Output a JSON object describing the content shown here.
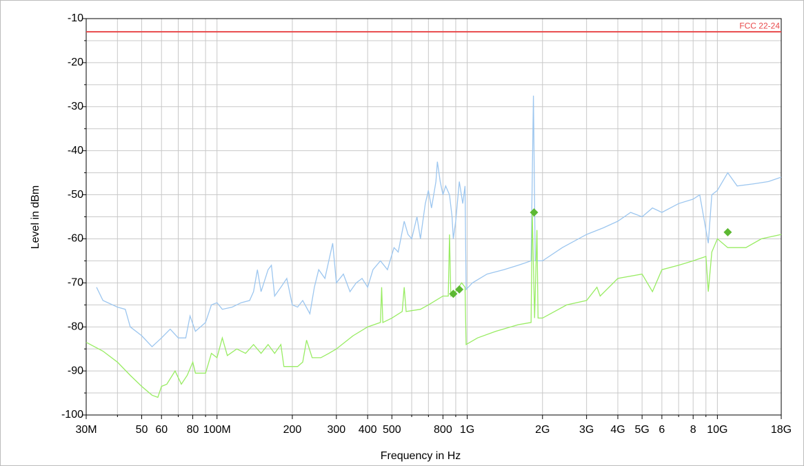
{
  "chart_data": {
    "type": "line",
    "xlabel": "Frequency in Hz",
    "ylabel": "Level in dBm",
    "xscale": "log",
    "grid": true,
    "xlim": [
      30000000,
      18000000000
    ],
    "ylim": [
      -100,
      -10
    ],
    "yticks": [
      -100,
      -90,
      -80,
      -70,
      -60,
      -50,
      -40,
      -30,
      -20,
      -10
    ],
    "yminorticks": [
      -95,
      -85,
      -75,
      -65,
      -55,
      -45,
      -35,
      -25,
      -15
    ],
    "xticks": [
      {
        "value": 30000000,
        "label": "30M"
      },
      {
        "value": 50000000,
        "label": "50"
      },
      {
        "value": 60000000,
        "label": "60"
      },
      {
        "value": 80000000,
        "label": "80"
      },
      {
        "value": 100000000,
        "label": "100M"
      },
      {
        "value": 200000000,
        "label": "200"
      },
      {
        "value": 300000000,
        "label": "300"
      },
      {
        "value": 400000000,
        "label": "400"
      },
      {
        "value": 500000000,
        "label": "500"
      },
      {
        "value": 800000000,
        "label": "800"
      },
      {
        "value": 1000000000,
        "label": "1G"
      },
      {
        "value": 2000000000,
        "label": "2G"
      },
      {
        "value": 3000000000,
        "label": "3G"
      },
      {
        "value": 4000000000,
        "label": "4G"
      },
      {
        "value": 5000000000,
        "label": "5G"
      },
      {
        "value": 6000000000,
        "label": "6"
      },
      {
        "value": 8000000000,
        "label": "8"
      },
      {
        "value": 10000000000,
        "label": "10G"
      },
      {
        "value": 18000000000,
        "label": "18G"
      }
    ],
    "xminorticks": [
      40000000,
      70000000,
      90000000,
      600000000,
      700000000,
      900000000,
      7000000000,
      9000000000
    ],
    "limit_lines": [
      {
        "name": "FCC 22-24",
        "value": -13,
        "color": "#e8484a"
      }
    ],
    "markers": {
      "color": "#5cb832",
      "x": [
        880000000,
        930000000,
        1850000000,
        11000000000
      ],
      "values": [
        -72.5,
        -71.5,
        -54,
        -58.5
      ]
    },
    "series": [
      {
        "color": "#9cc6ef",
        "x": [
          33000000,
          35000000,
          40000000,
          43000000,
          45000000,
          50000000,
          55000000,
          60000000,
          65000000,
          70000000,
          75000000,
          78000000,
          82000000,
          90000000,
          95000000,
          100000000,
          105000000,
          115000000,
          125000000,
          135000000,
          140000000,
          145000000,
          150000000,
          160000000,
          165000000,
          170000000,
          180000000,
          190000000,
          200000000,
          210000000,
          220000000,
          235000000,
          245000000,
          255000000,
          270000000,
          290000000,
          300000000,
          320000000,
          340000000,
          360000000,
          380000000,
          400000000,
          420000000,
          450000000,
          480000000,
          510000000,
          530000000,
          560000000,
          580000000,
          600000000,
          630000000,
          650000000,
          680000000,
          700000000,
          720000000,
          750000000,
          760000000,
          780000000,
          800000000,
          820000000,
          850000000,
          870000000,
          880000000,
          900000000,
          930000000,
          960000000,
          980000000,
          990000000,
          1050000000,
          1200000000,
          1400000000,
          1600000000,
          1800000000,
          1840000000,
          1870000000,
          2000000000,
          2400000000,
          3000000000,
          3500000000,
          4000000000,
          4500000000,
          5000000000,
          5500000000,
          6000000000,
          7000000000,
          8000000000,
          8500000000,
          9000000000,
          9200000000,
          9500000000,
          10000000000,
          11000000000,
          12000000000,
          14000000000,
          16000000000,
          18000000000
        ],
        "values": [
          -71,
          -74,
          -75.5,
          -76,
          -80,
          -82,
          -84.5,
          -82.5,
          -80.5,
          -82.5,
          -82.5,
          -77.5,
          -81,
          -79,
          -75,
          -74.5,
          -76,
          -75.5,
          -74.5,
          -74,
          -72,
          -67,
          -72,
          -67,
          -66,
          -73,
          -71,
          -69,
          -75,
          -75.5,
          -74,
          -77,
          -71,
          -67,
          -69,
          -61,
          -70,
          -68,
          -72,
          -70,
          -69,
          -71,
          -67,
          -65,
          -67,
          -62,
          -63,
          -56,
          -59,
          -60,
          -55,
          -60,
          -52,
          -49,
          -53,
          -47,
          -42.5,
          -47,
          -50,
          -48,
          -50,
          -55,
          -60,
          -56,
          -47,
          -52,
          -48,
          -71.5,
          -70,
          -68,
          -67,
          -66,
          -65,
          -27.5,
          -65,
          -65,
          -62,
          -59,
          -57.5,
          -56,
          -54,
          -55,
          -53,
          -54,
          -52,
          -51,
          -50,
          -58,
          -61,
          -50,
          -49,
          -45,
          -48,
          -47.5,
          -47,
          -46
        ]
      },
      {
        "color": "#98ec62",
        "x": [
          30000000,
          35000000,
          40000000,
          45000000,
          50000000,
          55000000,
          58000000,
          60000000,
          63000000,
          68000000,
          72000000,
          76000000,
          80000000,
          82000000,
          90000000,
          95000000,
          100000000,
          105000000,
          110000000,
          120000000,
          130000000,
          140000000,
          150000000,
          160000000,
          170000000,
          180000000,
          185000000,
          200000000,
          210000000,
          220000000,
          228000000,
          240000000,
          260000000,
          280000000,
          300000000,
          350000000,
          400000000,
          450000000,
          455000000,
          460000000,
          500000000,
          550000000,
          560000000,
          570000000,
          650000000,
          700000000,
          800000000,
          840000000,
          850000000,
          860000000,
          900000000,
          950000000,
          980000000,
          990000000,
          1100000000,
          1300000000,
          1600000000,
          1800000000,
          1820000000,
          1860000000,
          1900000000,
          1920000000,
          2000000000,
          2500000000,
          3000000000,
          3300000000,
          3400000000,
          4000000000,
          5000000000,
          5500000000,
          6000000000,
          7000000000,
          8000000000,
          9000000000,
          9200000000,
          9500000000,
          10000000000,
          11000000000,
          13000000000,
          15000000000,
          18000000000
        ],
        "values": [
          -83.5,
          -85.5,
          -88,
          -91,
          -93.5,
          -95.5,
          -96,
          -93.5,
          -93,
          -90,
          -93,
          -91,
          -88,
          -90.5,
          -90.5,
          -86,
          -87,
          -82.5,
          -86.5,
          -85,
          -86,
          -84,
          -86,
          -84,
          -86,
          -84,
          -89,
          -89,
          -89,
          -88,
          -83,
          -87,
          -87,
          -86,
          -85,
          -82,
          -80,
          -79,
          -71,
          -79,
          -78,
          -76.5,
          -71,
          -76.5,
          -76,
          -75,
          -73,
          -73,
          -59,
          -73,
          -72,
          -70,
          -71,
          -84,
          -82.5,
          -81,
          -79.5,
          -79,
          -54,
          -78,
          -58,
          -78,
          -78,
          -75,
          -74,
          -71,
          -73,
          -69,
          -68,
          -72,
          -67,
          -66,
          -65,
          -64,
          -72,
          -63,
          -60,
          -62,
          -62,
          -60,
          -59
        ]
      }
    ]
  }
}
